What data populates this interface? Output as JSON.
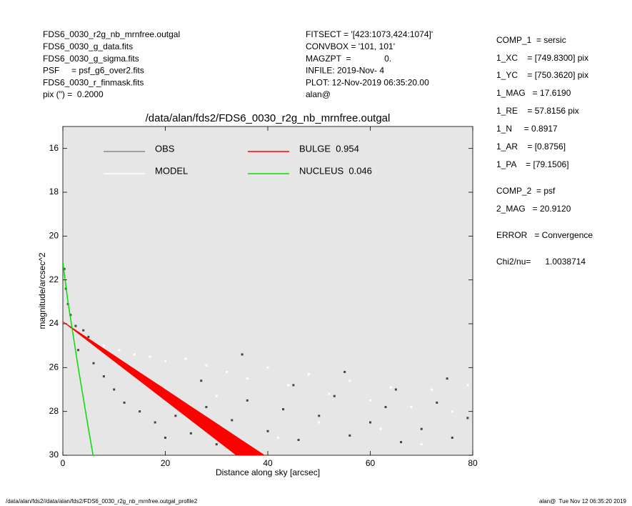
{
  "info_left": [
    "FDS6_0030_r2g_nb_mrnfree.outgal",
    "FDS6_0030_g_data.fits",
    "FDS6_0030_g_sigma.fits",
    "PSF     = psf_g6_over2.fits",
    "FDS6_0030_r_finmask.fits",
    "pix (\") =  0.2000"
  ],
  "info_middle": [
    "FITSECT = '[423:1073,424:1074]'",
    "CONVBOX = '101, 101'",
    "MAGZPT  =              0.",
    "INFILE: 2019-Nov- 4",
    "PLOT: 12-Nov-2019 06:35:20.00",
    "alan@"
  ],
  "info_right": [
    "COMP_1  = sersic",
    "1_XC    = [749.8300] pix",
    "1_YC    = [750.3620] pix",
    "1_MAG   = 17.6190",
    "1_RE    = 57.8156 pix",
    "1_N     = 0.8917",
    "1_AR    = [0.8756]",
    "1_PA    = [79.1506]",
    "COMP_2  = psf",
    "2_MAG   = 20.9120",
    "ERROR   = Convergence",
    "Chi2/nu=      1.0038714"
  ],
  "footer_left": "/data/alan/fds2//data/alan/fds2/FDS6_0030_r2g_nb_mrnfree.outgal_profile2",
  "footer_right": "alan@  Tue Nov 12 06:35:20 2019",
  "chart_data": {
    "type": "scatter",
    "title": "/data/alan/fds2/FDS6_0030_r2g_nb_mrnfree.outgal",
    "x_label": "Distance along sky [arcsec]",
    "y_label": "magnitude/arcsec^2",
    "xlim": [
      0,
      80
    ],
    "xticks": [
      0,
      20,
      40,
      60,
      80
    ],
    "ylim": [
      30,
      15
    ],
    "yticks": [
      16,
      18,
      20,
      22,
      24,
      26,
      28,
      30
    ],
    "inverted_y": true,
    "series": [
      {
        "name": "OBS",
        "color": "#444444",
        "legend_color": "#888888",
        "type": "scatter",
        "x": [
          0.3,
          0.6,
          1,
          1.5,
          2.5,
          4,
          5,
          3,
          6,
          8,
          10,
          12,
          15,
          18,
          20,
          22,
          25,
          28,
          30,
          33,
          36,
          40,
          43,
          46,
          50,
          53,
          56,
          60,
          63,
          66,
          70,
          73,
          76,
          79,
          35,
          45,
          55,
          65,
          75,
          27
        ],
        "values": [
          21.5,
          22.4,
          23.1,
          23.6,
          24.1,
          24.3,
          24.6,
          25.2,
          25.8,
          26.4,
          27,
          27.6,
          28,
          28.5,
          29.2,
          28.2,
          29,
          27.8,
          29.5,
          28.4,
          27.5,
          28.9,
          27.9,
          29.3,
          28.2,
          27.3,
          29.1,
          28.5,
          27.8,
          29.4,
          28.8,
          27.6,
          29.2,
          28.3,
          25.4,
          26.8,
          26.2,
          27,
          26.5,
          26.6
        ]
      },
      {
        "name": "MODEL",
        "color": "#ffffff",
        "legend_color": "#ffffff",
        "type": "scatter",
        "x": [
          2,
          5,
          8,
          11,
          14,
          17,
          20,
          24,
          28,
          32,
          36,
          40,
          44,
          48,
          52,
          56,
          60,
          64,
          68,
          72,
          76,
          79,
          30,
          50,
          70,
          42,
          62,
          20
        ],
        "values": [
          24.3,
          24.8,
          25,
          25.2,
          25.4,
          25.5,
          25.7,
          25.6,
          25.9,
          26.2,
          26.5,
          26,
          26.8,
          26.3,
          27.2,
          26.6,
          27.5,
          26.9,
          27.8,
          27,
          28,
          26.8,
          27.3,
          28.5,
          29.5,
          29.2,
          28.8,
          27
        ]
      },
      {
        "name": "BULGE  0.954",
        "color": "#ff0000",
        "legend_color": "#ff0000",
        "type": "band",
        "x": [
          0,
          5,
          10,
          15,
          20,
          25,
          30,
          35,
          40
        ],
        "values": [
          23.9,
          24.68,
          25.45,
          26.23,
          27,
          27.78,
          28.55,
          29.33,
          30.1
        ],
        "lower": [
          23.9,
          24.8,
          25.7,
          26.6,
          27.5,
          28.4,
          29.3,
          30.2,
          31.1
        ]
      },
      {
        "name": "NUCLEUS  0.046",
        "color": "#00e000",
        "legend_color": "#00e000",
        "type": "line",
        "x": [
          0,
          0.5,
          1,
          2,
          3,
          4,
          5,
          5.9
        ],
        "values": [
          21.2,
          22.1,
          23,
          24.5,
          26,
          27.4,
          28.8,
          30
        ]
      }
    ]
  }
}
